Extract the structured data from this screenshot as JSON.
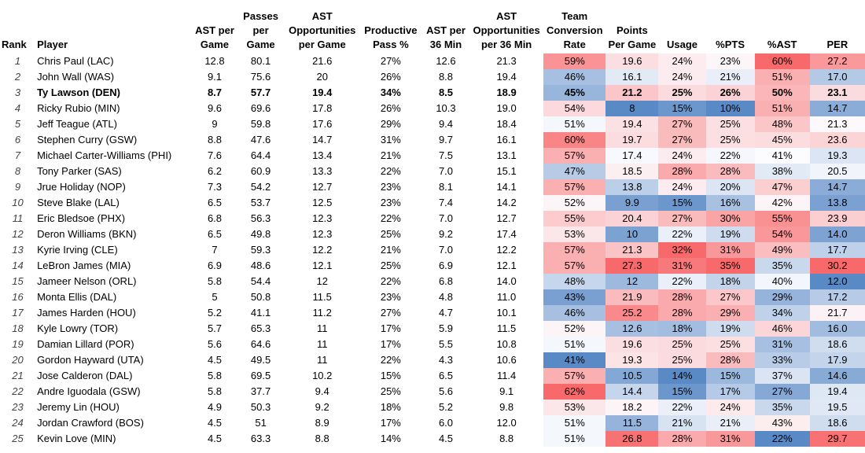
{
  "table": {
    "columns": [
      "Rank",
      "Player",
      "AST per Game",
      "Passes per Game",
      "AST Opportunities per Game",
      "Productive Pass %",
      "AST per 36 Min",
      "AST Opportunities per 36 Min",
      "Team Conversion Rate",
      "Points Per Game",
      "Usage",
      "%PTS",
      "%AST",
      "PER"
    ],
    "rows": [
      [
        "1",
        "Chris Paul (LAC)",
        "12.8",
        "80.1",
        "21.6",
        "27%",
        "12.6",
        "21.3",
        "59%",
        "19.6",
        "24%",
        "23%",
        "60%",
        "27.2"
      ],
      [
        "2",
        "John Wall (WAS)",
        "9.1",
        "75.6",
        "20",
        "26%",
        "8.8",
        "19.4",
        "46%",
        "16.1",
        "24%",
        "21%",
        "51%",
        "17.0"
      ],
      [
        "3",
        "Ty Lawson (DEN)",
        "8.7",
        "57.7",
        "19.4",
        "34%",
        "8.5",
        "18.9",
        "45%",
        "21.2",
        "25%",
        "26%",
        "50%",
        "23.1"
      ],
      [
        "4",
        "Ricky Rubio (MIN)",
        "9.6",
        "69.6",
        "17.8",
        "26%",
        "10.3",
        "19.0",
        "54%",
        "8",
        "15%",
        "10%",
        "51%",
        "14.7"
      ],
      [
        "5",
        "Jeff Teague (ATL)",
        "9",
        "59.8",
        "17.6",
        "29%",
        "9.4",
        "18.4",
        "51%",
        "19.4",
        "27%",
        "25%",
        "48%",
        "21.3"
      ],
      [
        "6",
        "Stephen Curry (GSW)",
        "8.8",
        "47.6",
        "14.7",
        "31%",
        "9.7",
        "16.1",
        "60%",
        "19.7",
        "27%",
        "25%",
        "45%",
        "23.6"
      ],
      [
        "7",
        "Michael Carter-Williams (PHI)",
        "7.6",
        "64.4",
        "13.4",
        "21%",
        "7.5",
        "13.1",
        "57%",
        "17.4",
        "24%",
        "22%",
        "41%",
        "19.3"
      ],
      [
        "8",
        "Tony Parker (SAS)",
        "6.2",
        "60.9",
        "13.3",
        "22%",
        "7.0",
        "15.1",
        "47%",
        "18.5",
        "28%",
        "28%",
        "38%",
        "20.5"
      ],
      [
        "9",
        "Jrue Holiday (NOP)",
        "7.3",
        "54.2",
        "12.7",
        "23%",
        "8.1",
        "14.1",
        "57%",
        "13.8",
        "24%",
        "20%",
        "47%",
        "14.7"
      ],
      [
        "10",
        "Steve Blake (LAL)",
        "6.5",
        "53.7",
        "12.5",
        "23%",
        "7.4",
        "14.2",
        "52%",
        "9.9",
        "15%",
        "16%",
        "42%",
        "13.8"
      ],
      [
        "11",
        "Eric Bledsoe (PHX)",
        "6.8",
        "56.3",
        "12.3",
        "22%",
        "7.0",
        "12.7",
        "55%",
        "20.4",
        "27%",
        "30%",
        "55%",
        "23.9"
      ],
      [
        "12",
        "Deron Williams (BKN)",
        "6.5",
        "49.8",
        "12.3",
        "25%",
        "9.2",
        "17.4",
        "53%",
        "10",
        "22%",
        "19%",
        "54%",
        "14.0"
      ],
      [
        "13",
        "Kyrie Irving (CLE)",
        "7",
        "59.3",
        "12.2",
        "21%",
        "7.0",
        "12.2",
        "57%",
        "21.3",
        "32%",
        "31%",
        "49%",
        "17.7"
      ],
      [
        "14",
        "LeBron James (MIA)",
        "6.9",
        "48.6",
        "12.1",
        "25%",
        "6.9",
        "12.1",
        "57%",
        "27.3",
        "31%",
        "35%",
        "35%",
        "30.2"
      ],
      [
        "15",
        "Jameer Nelson (ORL)",
        "5.8",
        "54.4",
        "12",
        "22%",
        "6.8",
        "14.0",
        "48%",
        "12",
        "22%",
        "18%",
        "40%",
        "12.0"
      ],
      [
        "16",
        "Monta Ellis (DAL)",
        "5",
        "50.8",
        "11.5",
        "23%",
        "4.8",
        "11.0",
        "43%",
        "21.9",
        "28%",
        "27%",
        "29%",
        "17.2"
      ],
      [
        "17",
        "James Harden (HOU)",
        "5.2",
        "41.1",
        "11.2",
        "27%",
        "4.7",
        "10.1",
        "46%",
        "25.2",
        "28%",
        "29%",
        "34%",
        "21.7"
      ],
      [
        "18",
        "Kyle Lowry (TOR)",
        "5.7",
        "65.3",
        "11",
        "17%",
        "5.9",
        "11.5",
        "52%",
        "12.6",
        "18%",
        "19%",
        "46%",
        "16.0"
      ],
      [
        "19",
        "Damian Lillard (POR)",
        "5.6",
        "64.6",
        "11",
        "17%",
        "5.5",
        "10.8",
        "51%",
        "19.6",
        "25%",
        "25%",
        "31%",
        "18.6"
      ],
      [
        "20",
        "Gordon Hayward (UTA)",
        "4.5",
        "49.5",
        "11",
        "22%",
        "4.3",
        "10.6",
        "41%",
        "19.3",
        "25%",
        "28%",
        "33%",
        "17.9"
      ],
      [
        "21",
        "Jose Calderon (DAL)",
        "5.8",
        "69.5",
        "10.2",
        "15%",
        "6.5",
        "11.4",
        "57%",
        "10.5",
        "14%",
        "15%",
        "37%",
        "14.6"
      ],
      [
        "22",
        "Andre Iguodala (GSW)",
        "5.8",
        "37.7",
        "9.4",
        "25%",
        "5.6",
        "9.1",
        "62%",
        "14.4",
        "15%",
        "17%",
        "27%",
        "19.4"
      ],
      [
        "23",
        "Jeremy Lin (HOU)",
        "4.9",
        "50.3",
        "9.2",
        "18%",
        "5.2",
        "9.8",
        "53%",
        "18.2",
        "22%",
        "24%",
        "35%",
        "19.5"
      ],
      [
        "24",
        "Jordan Crawford (BOS)",
        "4.5",
        "51",
        "8.9",
        "17%",
        "6.0",
        "12.0",
        "51%",
        "11.5",
        "21%",
        "21%",
        "43%",
        "18.6"
      ],
      [
        "25",
        "Kevin Love (MIN)",
        "4.5",
        "63.3",
        "8.8",
        "14%",
        "4.5",
        "8.8",
        "51%",
        "26.8",
        "28%",
        "31%",
        "22%",
        "29.7"
      ]
    ]
  }
}
